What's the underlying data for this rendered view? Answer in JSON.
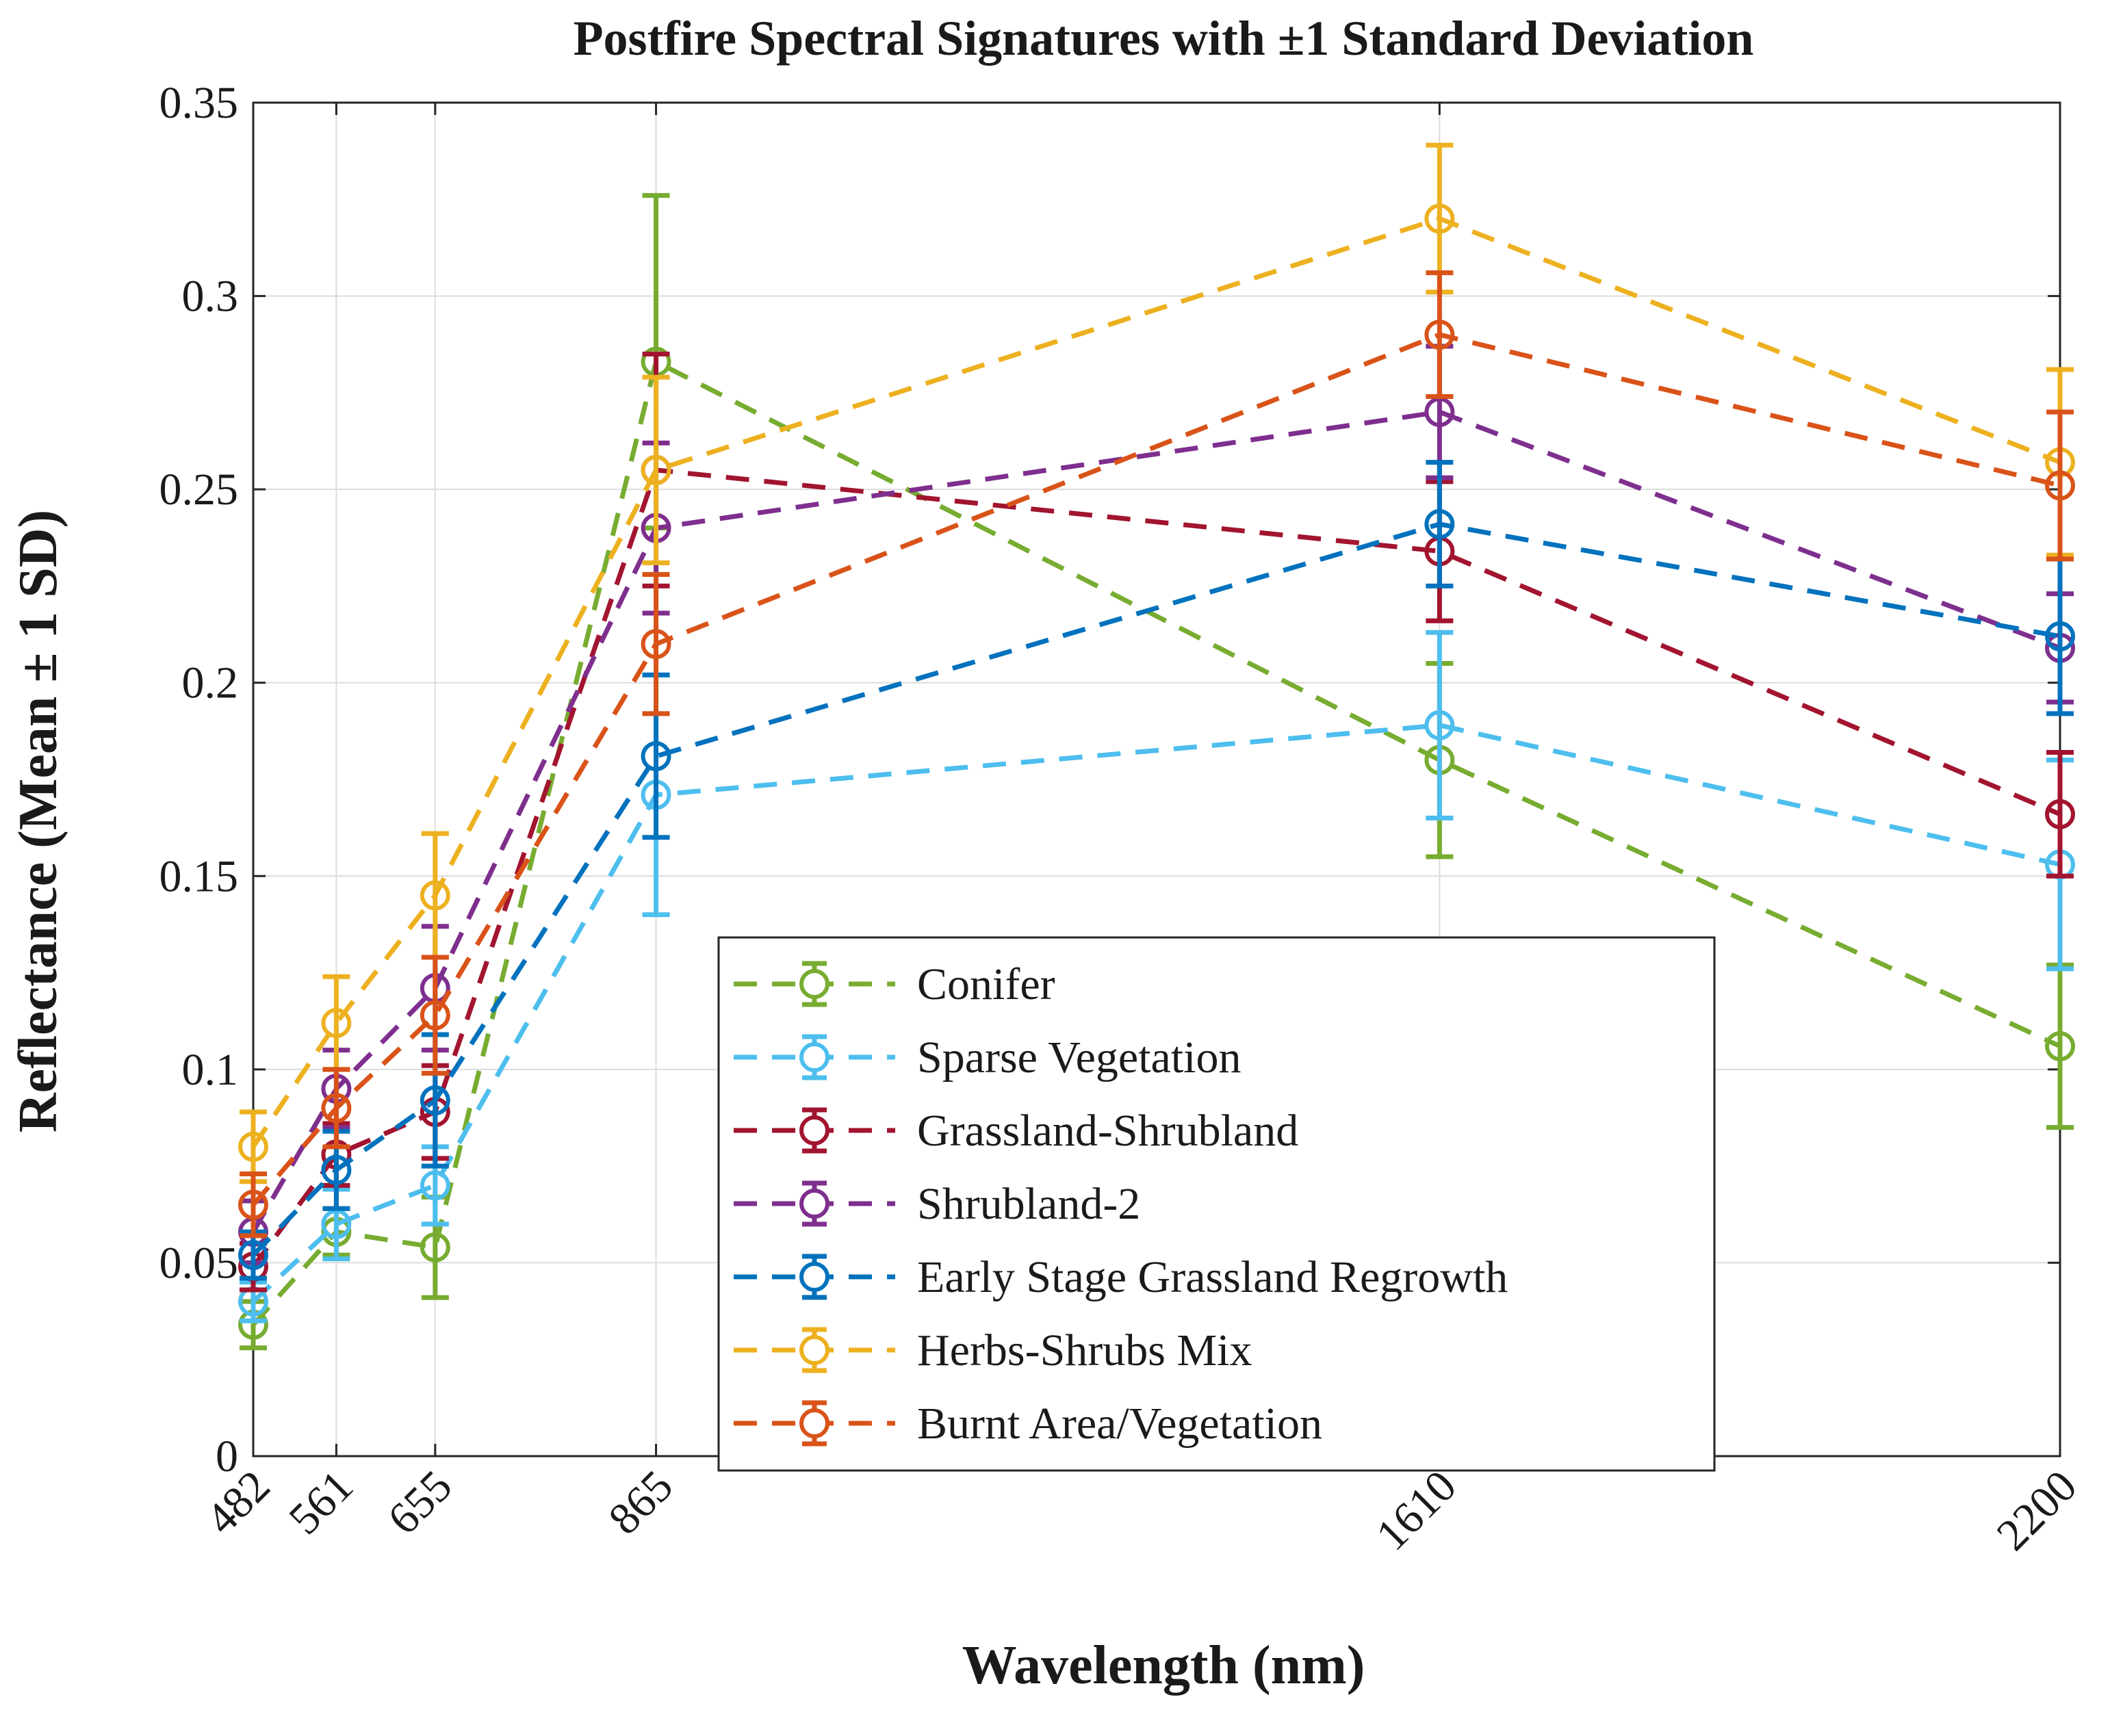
{
  "chart_data": {
    "type": "line",
    "title": "Postfire Spectral Signatures with ±1 Standard Deviation",
    "xlabel": "Wavelength (nm)",
    "ylabel": "Reflectance (Mean ± 1 SD)",
    "x": [
      482,
      561,
      655,
      865,
      1610,
      2200
    ],
    "x_tick_labels": [
      "482",
      "561",
      "655",
      "865",
      "1610",
      "2200"
    ],
    "xlim": [
      482,
      2200
    ],
    "ylim": [
      0,
      0.35
    ],
    "y_ticks": [
      0,
      0.05,
      0.1,
      0.15,
      0.2,
      0.25,
      0.3,
      0.35
    ],
    "y_tick_labels": [
      "0",
      "0.05",
      "0.1",
      "0.15",
      "0.2",
      "0.25",
      "0.3",
      "0.35"
    ],
    "grid": true,
    "legend_position": "bottom-center",
    "line_style": "dashed",
    "marker": "circle",
    "series": [
      {
        "name": "Conifer",
        "color": "#77AC30",
        "values": [
          0.034,
          0.058,
          0.054,
          0.283,
          0.18,
          0.106
        ],
        "sd": [
          0.006,
          0.006,
          0.013,
          0.043,
          0.025,
          0.021
        ]
      },
      {
        "name": "Sparse Vegetation",
        "color": "#4DBEEE",
        "values": [
          0.04,
          0.06,
          0.07,
          0.171,
          0.189,
          0.153
        ],
        "sd": [
          0.005,
          0.009,
          0.01,
          0.031,
          0.024,
          0.027
        ]
      },
      {
        "name": "Grassland-Shrubland",
        "color": "#A2142F",
        "values": [
          0.049,
          0.078,
          0.089,
          0.255,
          0.234,
          0.166
        ],
        "sd": [
          0.006,
          0.008,
          0.012,
          0.03,
          0.018,
          0.016
        ]
      },
      {
        "name": "Shrubland-2",
        "color": "#7E2F8E",
        "values": [
          0.058,
          0.095,
          0.121,
          0.24,
          0.27,
          0.209
        ],
        "sd": [
          0.008,
          0.01,
          0.016,
          0.022,
          0.017,
          0.014
        ]
      },
      {
        "name": "Early Stage Grassland Regrowth",
        "color": "#0072BD",
        "values": [
          0.052,
          0.074,
          0.092,
          0.181,
          0.241,
          0.212
        ],
        "sd": [
          0.006,
          0.01,
          0.017,
          0.021,
          0.016,
          0.02
        ]
      },
      {
        "name": "Herbs-Shrubs Mix",
        "color": "#EDB120",
        "values": [
          0.08,
          0.112,
          0.145,
          0.255,
          0.32,
          0.257
        ],
        "sd": [
          0.009,
          0.012,
          0.016,
          0.024,
          0.019,
          0.024
        ]
      },
      {
        "name": "Burnt Area/Vegetation",
        "color": "#D95319",
        "values": [
          0.065,
          0.09,
          0.114,
          0.21,
          0.29,
          0.251
        ],
        "sd": [
          0.008,
          0.01,
          0.015,
          0.018,
          0.016,
          0.019
        ]
      }
    ]
  }
}
